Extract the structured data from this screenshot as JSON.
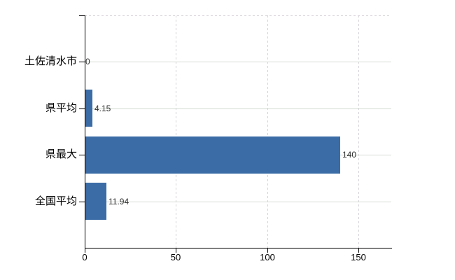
{
  "chart_data": {
    "type": "bar",
    "orientation": "horizontal",
    "title": "",
    "xlabel": "",
    "ylabel": "",
    "legend": "none",
    "categories": [
      "土佐清水市",
      "県平均",
      "県最大",
      "全国平均"
    ],
    "values": [
      0,
      4.15,
      140,
      11.94
    ],
    "value_labels": [
      "0",
      "4.15",
      "140",
      "11.94"
    ],
    "x_ticks": [
      0,
      50,
      100,
      150
    ],
    "x_tick_labels": [
      "0",
      "50",
      "100",
      "150"
    ],
    "xlim": [
      0,
      168
    ],
    "grid": {
      "horizontal": "solid",
      "vertical": "dashed",
      "top_border": "dashed"
    },
    "colors": {
      "bar": "#3b6ca6",
      "grid_horizontal": "#d2dbd2",
      "grid_vertical": "#d5d2d7",
      "axis": "#000000",
      "category_label": "#000000",
      "tick_label": "#000000",
      "value_label": "#2f2f2f",
      "background": "#ffffff"
    }
  }
}
